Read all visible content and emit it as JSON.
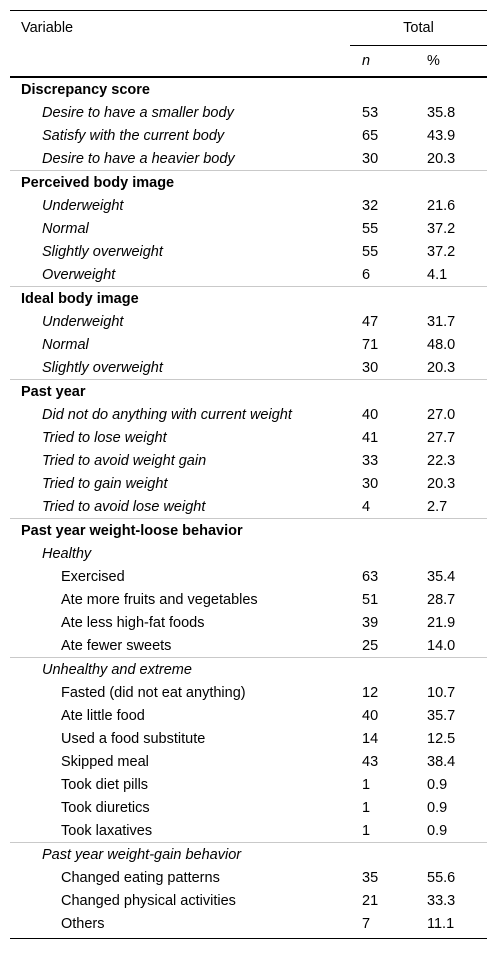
{
  "header": {
    "variable_label": "Variable",
    "group_label": "Total",
    "n_label": "n",
    "pct_label": "%"
  },
  "sections": [
    {
      "title": "Discrepancy score",
      "rows": [
        {
          "label": "Desire to have a smaller body",
          "n": "53",
          "pct": "35.8"
        },
        {
          "label": "Satisfy with the current body",
          "n": "65",
          "pct": "43.9"
        },
        {
          "label": "Desire to have a heavier body",
          "n": "30",
          "pct": "20.3"
        }
      ]
    },
    {
      "title": "Perceived body image",
      "rows": [
        {
          "label": "Underweight",
          "n": "32",
          "pct": "21.6"
        },
        {
          "label": "Normal",
          "n": "55",
          "pct": "37.2"
        },
        {
          "label": "Slightly overweight",
          "n": "55",
          "pct": "37.2"
        },
        {
          "label": "Overweight",
          "n": "6",
          "pct": "4.1"
        }
      ]
    },
    {
      "title": "Ideal body image",
      "rows": [
        {
          "label": "Underweight",
          "n": "47",
          "pct": "31.7"
        },
        {
          "label": "Normal",
          "n": "71",
          "pct": "48.0"
        },
        {
          "label": "Slightly overweight",
          "n": "30",
          "pct": "20.3"
        }
      ]
    },
    {
      "title": "Past year",
      "rows": [
        {
          "label": "Did not do anything with current weight",
          "n": "40",
          "pct": "27.0"
        },
        {
          "label": "Tried to lose weight",
          "n": "41",
          "pct": "27.7"
        },
        {
          "label": "Tried to avoid weight gain",
          "n": "33",
          "pct": "22.3"
        },
        {
          "label": "Tried to gain weight",
          "n": "30",
          "pct": "20.3"
        },
        {
          "label": "Tried to avoid lose weight",
          "n": "4",
          "pct": "2.7"
        }
      ]
    },
    {
      "title": "Past year weight-loose behavior",
      "subgroups": [
        {
          "title": "Healthy",
          "rows": [
            {
              "label": "Exercised",
              "n": "63",
              "pct": "35.4"
            },
            {
              "label": "Ate more fruits and vegetables",
              "n": "51",
              "pct": "28.7"
            },
            {
              "label": "Ate less high-fat foods",
              "n": "39",
              "pct": "21.9"
            },
            {
              "label": "Ate fewer sweets",
              "n": "25",
              "pct": "14.0"
            }
          ]
        },
        {
          "title": "Unhealthy and extreme",
          "rows": [
            {
              "label": "Fasted (did not eat anything)",
              "n": "12",
              "pct": "10.7"
            },
            {
              "label": "Ate little food",
              "n": "40",
              "pct": "35.7"
            },
            {
              "label": "Used a food substitute",
              "n": "14",
              "pct": "12.5"
            },
            {
              "label": "Skipped meal",
              "n": "43",
              "pct": "38.4"
            },
            {
              "label": "Took diet pills",
              "n": "1",
              "pct": "0.9"
            },
            {
              "label": "Took diuretics",
              "n": "1",
              "pct": "0.9"
            },
            {
              "label": "Took laxatives",
              "n": "1",
              "pct": "0.9"
            }
          ]
        },
        {
          "title": "Past year weight-gain behavior",
          "rows": [
            {
              "label": "Changed eating patterns",
              "n": "35",
              "pct": "55.6"
            },
            {
              "label": "Changed physical activities",
              "n": "21",
              "pct": "33.3"
            },
            {
              "label": "Others",
              "n": "7",
              "pct": "11.1"
            }
          ]
        }
      ]
    }
  ]
}
